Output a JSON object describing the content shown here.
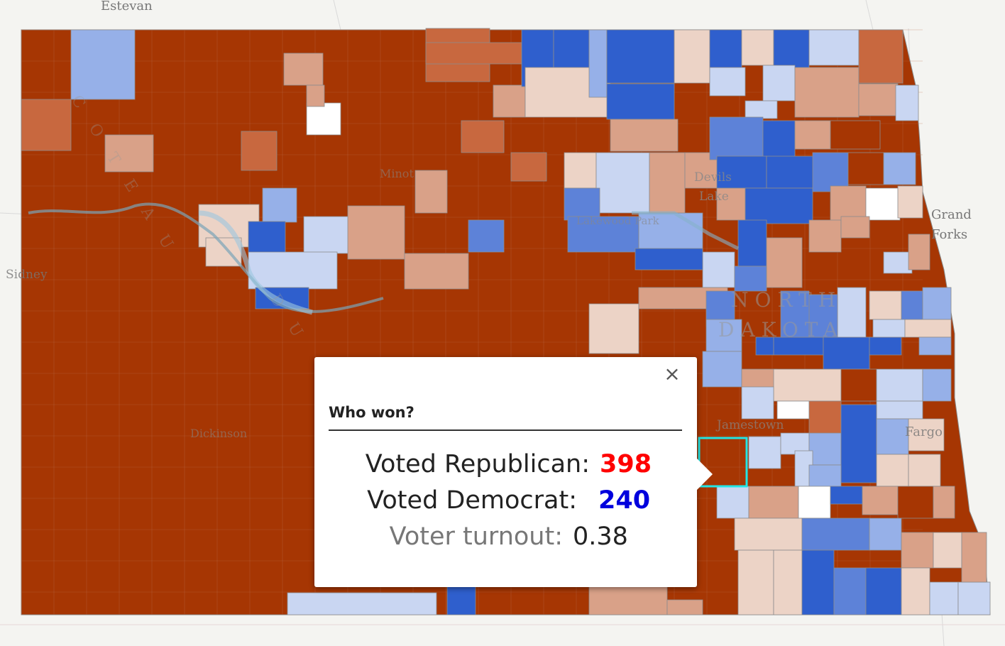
{
  "colors": {
    "background": "#f4f4f1",
    "republican_strong": "#a63603",
    "republican_medium": "#c8683f",
    "republican_light": "#d9a188",
    "republican_faint": "#ecd3c6",
    "democrat_faint": "#c9d6f2",
    "democrat_light": "#96b0e8",
    "democrat_medium": "#5d82d8",
    "democrat_strong": "#2f5fcd",
    "no_data": "#ffffff",
    "selected_outline": "#22e5e5"
  },
  "map_labels": {
    "estevan": "Estevan",
    "sidney": "Sidney",
    "devils": "Devils",
    "lake": "Lake",
    "grand": "Grand",
    "forks": "Forks",
    "north": "NORTH",
    "dakota": "DAKOTA",
    "jamestown": "Jamestown",
    "fargo": "Fargo",
    "dickinson": "Dickinson",
    "minot": "Minot",
    "lakewood_park": "Lakewood Park",
    "coteau": "COTEAU",
    "du": "DU"
  },
  "popup": {
    "title": "Who won?",
    "close_symbol": "×",
    "republican_label": "Voted Republican:",
    "republican_value": "398",
    "democrat_label": "Voted Democrat:",
    "democrat_value": "240",
    "turnout_label": "Voter turnout:",
    "turnout_value": "0.38"
  }
}
